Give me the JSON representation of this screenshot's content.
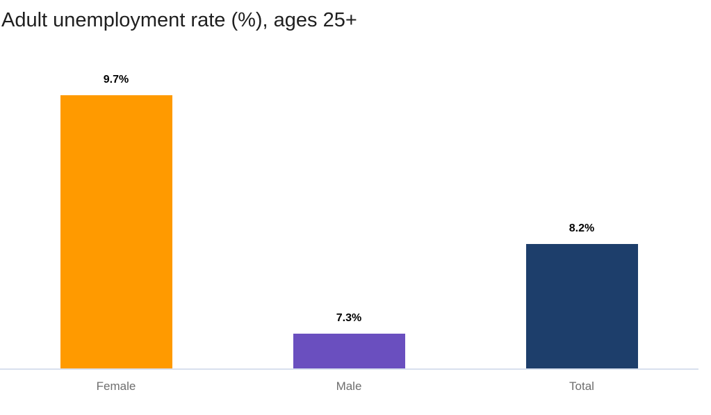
{
  "chart_data": {
    "type": "bar",
    "title": "Adult unemployment rate (%), ages 25+",
    "categories": [
      "Female",
      "Male",
      "Total"
    ],
    "values": [
      9.7,
      7.3,
      8.2
    ],
    "value_labels": [
      "9.7%",
      "7.3%",
      "8.2%"
    ],
    "bar_colors": [
      "#ff9a00",
      "#6a4fbf",
      "#1d3e6b"
    ],
    "ylim": [
      6.95,
      10.0
    ],
    "xlabel": "",
    "ylabel": "",
    "grid": false,
    "legend": "none",
    "axis_line_color": "#d8e0ee",
    "title_color": "#1f1f1f",
    "value_label_color": "#000000",
    "category_label_color": "#6e6e6e",
    "background_color": "#ffffff"
  }
}
